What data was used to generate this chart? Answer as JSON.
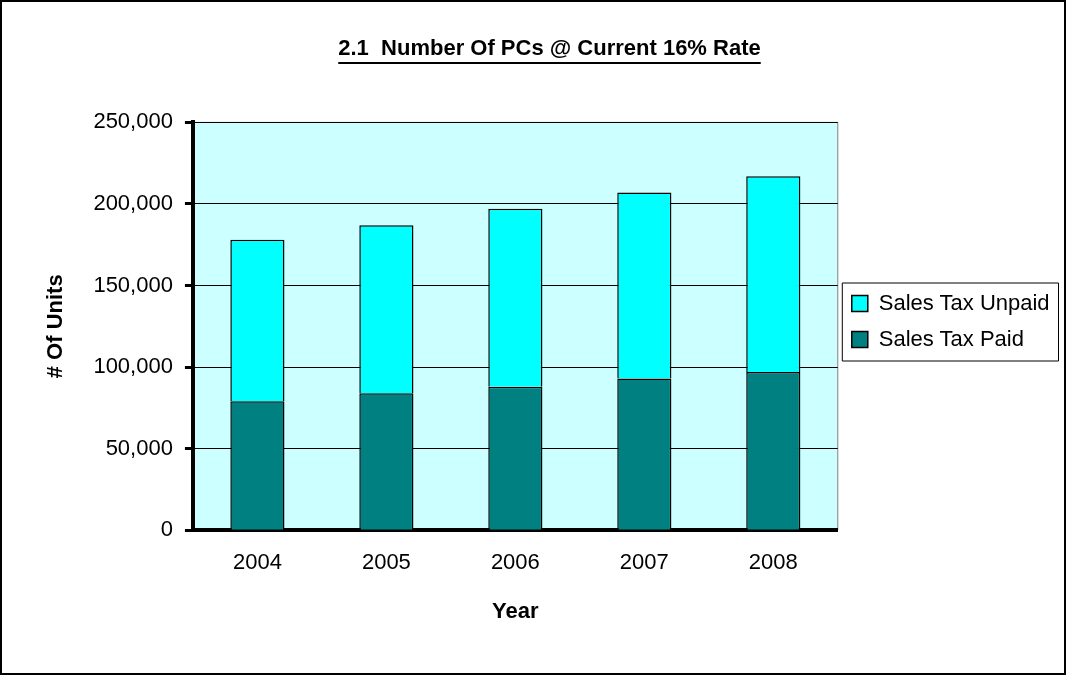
{
  "chart_data": {
    "type": "bar",
    "title": "2.1  Number Of PCs @ Current 16% Rate",
    "xlabel": "Year",
    "ylabel": "# Of Units",
    "categories": [
      "2004",
      "2005",
      "2006",
      "2007",
      "2008"
    ],
    "series": [
      {
        "name": "Sales Tax Paid",
        "color": "#008080",
        "values": [
          79000,
          84000,
          88000,
          93000,
          97000
        ]
      },
      {
        "name": "Sales Tax Unpaid",
        "color": "#00ffff",
        "values": [
          99000,
          103000,
          109000,
          114000,
          120000
        ]
      }
    ],
    "stacked": true,
    "ylim": [
      0,
      250000
    ],
    "yticks": [
      0,
      {
        "value": 50000,
        "label": "50,000"
      },
      {
        "value": 100000,
        "label": "100,000"
      },
      {
        "value": 150000,
        "label": "150,000"
      },
      {
        "value": 200000,
        "label": "200,000"
      },
      {
        "value": 250000,
        "label": "250,000"
      }
    ],
    "grid": "y",
    "legend": "right"
  }
}
